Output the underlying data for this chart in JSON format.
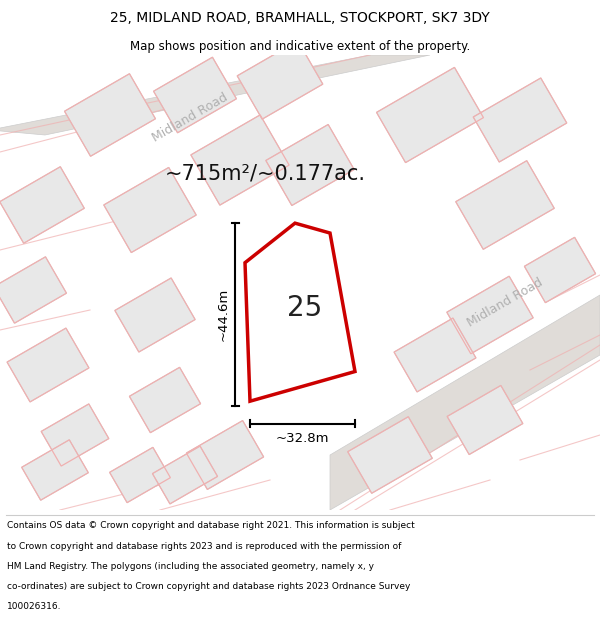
{
  "title_line1": "25, MIDLAND ROAD, BRAMHALL, STOCKPORT, SK7 3DY",
  "title_line2": "Map shows position and indicative extent of the property.",
  "area_text": "~715m²/~0.177ac.",
  "property_number": "25",
  "dim_vertical": "~44.6m",
  "dim_horizontal": "~32.8m",
  "footer_lines": [
    "Contains OS data © Crown copyright and database right 2021. This information is subject",
    "to Crown copyright and database rights 2023 and is reproduced with the permission of",
    "HM Land Registry. The polygons (including the associated geometry, namely x, y",
    "co-ordinates) are subject to Crown copyright and database rights 2023 Ordnance Survey",
    "100026316."
  ],
  "map_bg": "#ffffff",
  "block_fill": "#e8e8e8",
  "block_edge_grey": "#c8c8c8",
  "block_edge_pink": "#f0b0b0",
  "property_fill": "#ffffff",
  "property_edge": "#cc0000",
  "road_label_color": "#b0b0b0",
  "dim_line_color": "#000000",
  "title_color": "#000000",
  "footer_color": "#000000",
  "road_band_color": "#e0dcd8",
  "road_band_edge": "#cccccc"
}
